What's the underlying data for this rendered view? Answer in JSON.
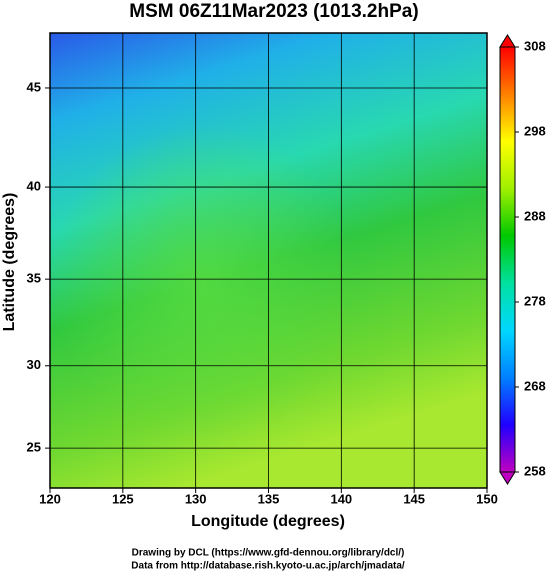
{
  "chart_data": {
    "type": "map",
    "title": "MSM 06Z11Mar2023 (1013.2hPa)",
    "x_label": "Longitude (degrees)",
    "y_label": "Latitude  (degrees)",
    "projection": "mercator",
    "xlim": [
      120,
      150
    ],
    "xticks": [
      120,
      125,
      130,
      135,
      140,
      145,
      150
    ],
    "ylim": [
      22.5,
      47.6
    ],
    "yticks": [
      25,
      30,
      35,
      40,
      45
    ],
    "grid": true,
    "colorbar": {
      "lim": [
        258,
        308
      ],
      "ticks": [
        258,
        268,
        278,
        288,
        298,
        308
      ],
      "colors": [
        "#c000c0",
        "#2000ff",
        "#0080ff",
        "#00d8ff",
        "#00e0a0",
        "#00c800",
        "#a0f000",
        "#ffff00",
        "#ff8000",
        "#ff0000"
      ]
    },
    "footer": [
      "Drawing by DCL (https://www.gfd-dennou.org/library/dcl/)",
      "Data from http://database.rish.kyoto-u.ac.jp/arch/jmadata/"
    ]
  }
}
